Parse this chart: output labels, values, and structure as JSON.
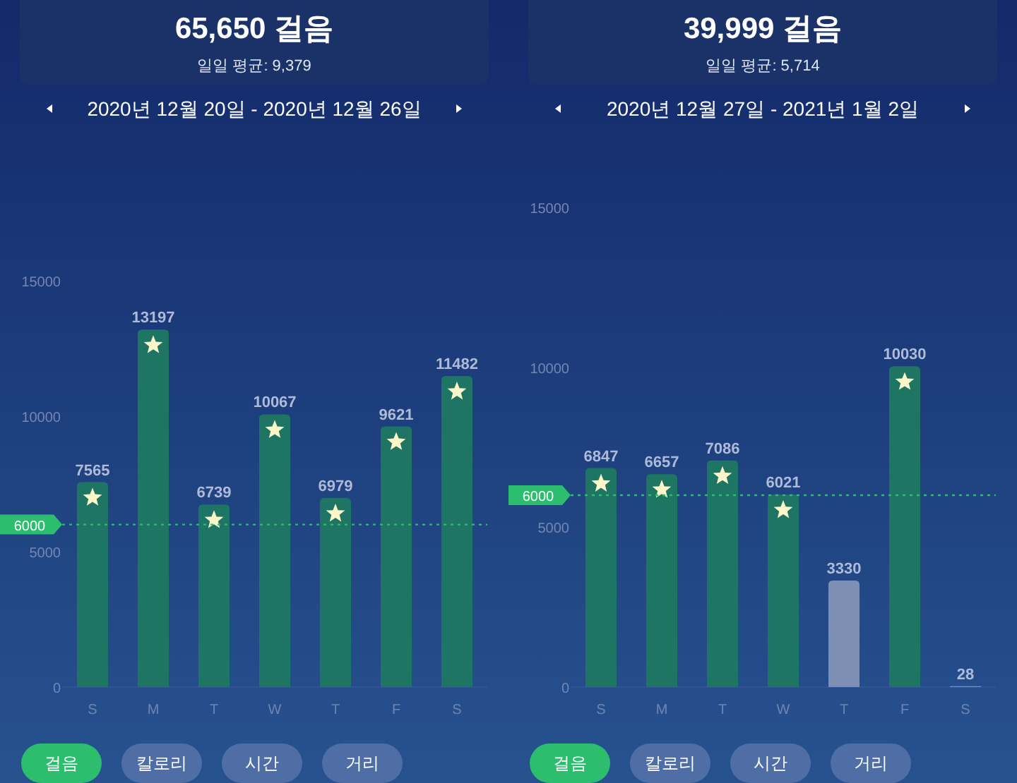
{
  "chart_data": [
    {
      "type": "bar",
      "title": "65,650 걸음",
      "subtitle": "일일 평균: 9,379",
      "annotations": [
        "2020년 12월 20일 - 2020년 12월 26일",
        "걸음",
        "칼로리",
        "시간",
        "거리"
      ],
      "categories": [
        "S",
        "M",
        "T",
        "W",
        "T",
        "F",
        "S"
      ],
      "values": [
        7565,
        13197,
        6739,
        10067,
        6979,
        9621,
        11482
      ],
      "colors": [
        "#1e7563",
        "#1e7563",
        "#1e7563",
        "#1e7563",
        "#1e7563",
        "#1e7563",
        "#1e7563"
      ],
      "ylim": [
        0,
        15000
      ],
      "yticks": [
        0,
        5000,
        10000,
        15000
      ],
      "data_labels": true,
      "grid": false,
      "ref_lines": [
        {
          "axis": "y",
          "value": 6000,
          "label": "6000",
          "color": "#2dbd6e",
          "line_style": "dotted"
        }
      ]
    },
    {
      "type": "bar",
      "title": "39,999 걸음",
      "subtitle": "일일 평균: 5,714",
      "annotations": [
        "2020년 12월 27일 - 2021년 1월 2일",
        "걸음",
        "칼로리",
        "시간",
        "거리"
      ],
      "categories": [
        "S",
        "M",
        "T",
        "W",
        "T",
        "F",
        "S"
      ],
      "values": [
        6847,
        6657,
        7086,
        6021,
        3330,
        10030,
        28
      ],
      "colors": [
        "#1e7563",
        "#1e7563",
        "#1e7563",
        "#1e7563",
        "#7d8fb3",
        "#1e7563",
        "#7d8fb3"
      ],
      "ylim": [
        0,
        15000
      ],
      "yticks": [
        0,
        5000,
        10000,
        15000
      ],
      "data_labels": true,
      "grid": false,
      "ref_lines": [
        {
          "axis": "y",
          "value": 6000,
          "label": "6000",
          "color": "#2dbd6e",
          "line_style": "dotted"
        }
      ]
    }
  ]
}
